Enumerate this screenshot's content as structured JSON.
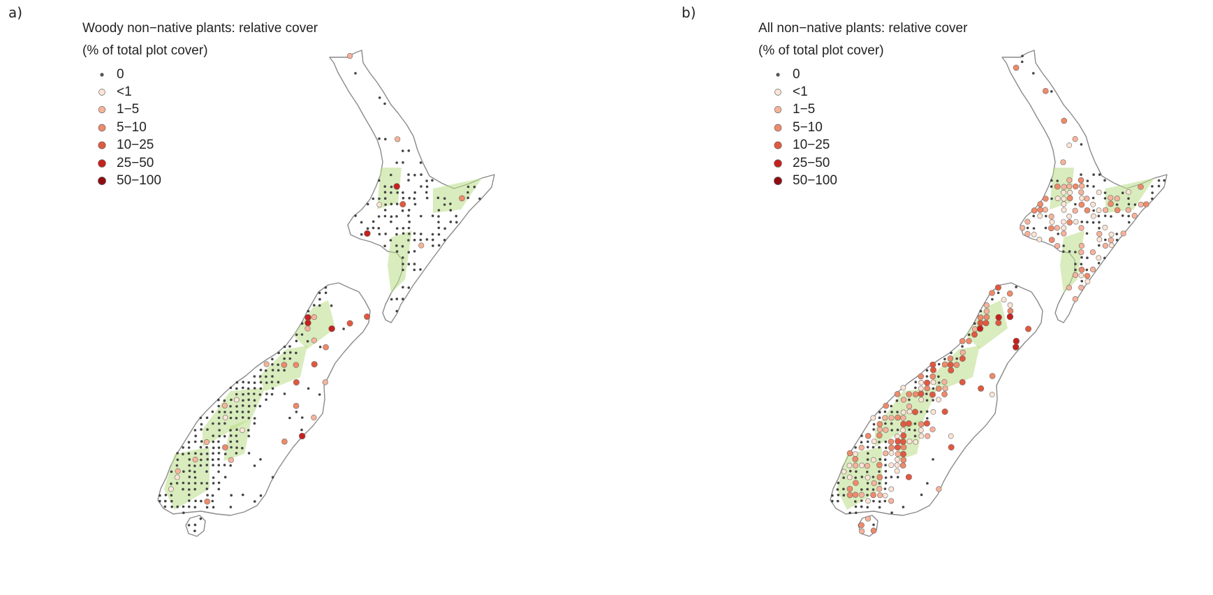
{
  "panels": [
    {
      "label": "a)",
      "title": "Woody non−native plants: relative cover",
      "subtitle": "(% of total plot cover)",
      "legend": [
        {
          "label": "0",
          "color": "#555555"
        },
        {
          "label": "<1",
          "color": "#fde5d6"
        },
        {
          "label": "1−5",
          "color": "#f7b39a"
        },
        {
          "label": "5−10",
          "color": "#ef8a6a"
        },
        {
          "label": "10−25",
          "color": "#e2583f"
        },
        {
          "label": "25−50",
          "color": "#c7211e"
        },
        {
          "label": "50−100",
          "color": "#8f0d12"
        }
      ]
    },
    {
      "label": "b)",
      "title": "All non−native plants: relative cover",
      "subtitle": "(% of total plot cover)",
      "legend": [
        {
          "label": "0",
          "color": "#555555"
        },
        {
          "label": "<1",
          "color": "#fde5d6"
        },
        {
          "label": "1−5",
          "color": "#f7b39a"
        },
        {
          "label": "5−10",
          "color": "#ef8a6a"
        },
        {
          "label": "10−25",
          "color": "#e2583f"
        },
        {
          "label": "25−50",
          "color": "#c7211e"
        },
        {
          "label": "50−100",
          "color": "#8f0d12"
        }
      ]
    }
  ],
  "colors": {
    "land_fill": "#ffffff",
    "coast_stroke": "#8a8a8a",
    "native_vegetation": "#b9dc86",
    "zero_point": "#444444"
  }
}
